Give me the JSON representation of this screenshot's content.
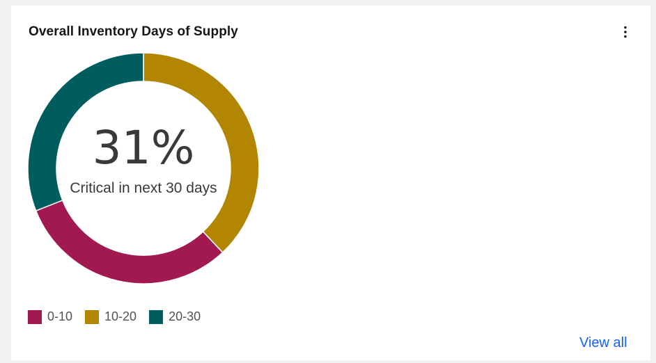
{
  "card": {
    "title": "Overall Inventory Days of Supply",
    "view_all_label": "View all",
    "overflow_icon": "overflow-menu-vertical-icon",
    "link_color": "#0f62fe"
  },
  "chart_data": {
    "type": "pie",
    "donut": true,
    "categories": [
      "0-10",
      "10-20",
      "20-30"
    ],
    "values": [
      31,
      38,
      31
    ],
    "colors": [
      "#a11950",
      "#b28600",
      "#005d5d"
    ],
    "legend_position": "bottom-left",
    "center": {
      "value": "31%",
      "label": "Critical in next 30 days"
    }
  }
}
